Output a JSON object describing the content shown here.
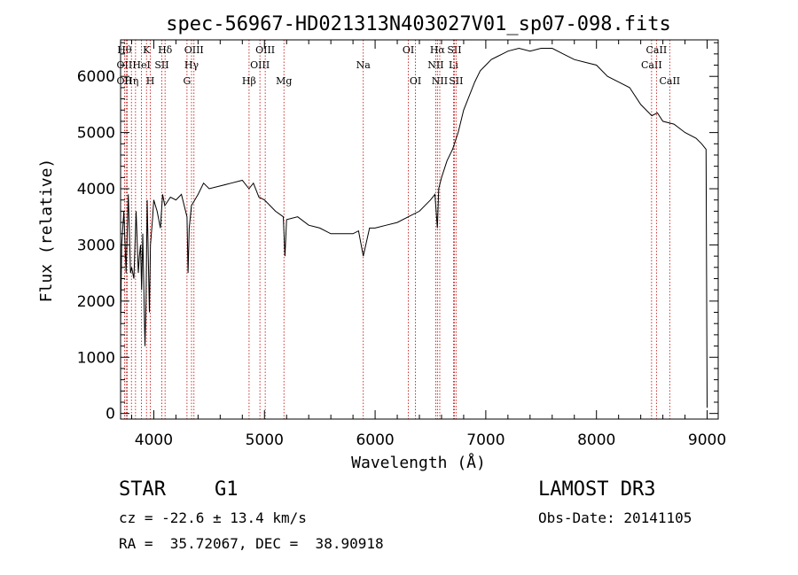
{
  "chart_data": {
    "type": "line",
    "title": "spec-56967-HD021313N403027V01_sp07-098.fits",
    "xlabel": "Wavelength (Å)",
    "ylabel": "Flux (relative)",
    "xlim": [
      3700,
      9100
    ],
    "ylim": [
      -100,
      6650
    ],
    "x_ticks": [
      4000,
      5000,
      6000,
      7000,
      8000,
      9000
    ],
    "y_ticks": [
      0,
      1000,
      2000,
      3000,
      4000,
      5000,
      6000
    ],
    "grid": false,
    "series": [
      {
        "x": [
          3700,
          3710,
          3730,
          3750,
          3770,
          3790,
          3800,
          3820,
          3840,
          3860,
          3870,
          3880,
          3890,
          3900,
          3920,
          3930,
          3940,
          3960,
          3970,
          3990,
          4000,
          4030,
          4060,
          4080,
          4100,
          4150,
          4200,
          4250,
          4300,
          4310,
          4320,
          4340,
          4400,
          4450,
          4500,
          4600,
          4700,
          4800,
          4860,
          4900,
          4950,
          5000,
          5100,
          5170,
          5185,
          5200,
          5300,
          5400,
          5500,
          5600,
          5700,
          5800,
          5850,
          5893,
          5950,
          6000,
          6100,
          6200,
          6300,
          6400,
          6500,
          6540,
          6563,
          6575,
          6600,
          6650,
          6700,
          6750,
          6800,
          6900,
          6950,
          7000,
          7050,
          7100,
          7150,
          7200,
          7300,
          7400,
          7500,
          7600,
          7700,
          7800,
          7900,
          8000,
          8100,
          8200,
          8300,
          8400,
          8500,
          8550,
          8600,
          8700,
          8800,
          8900,
          8950,
          8990,
          9000
        ],
        "y": [
          1500,
          3000,
          3600,
          2500,
          3900,
          2500,
          2600,
          2400,
          3600,
          2500,
          2800,
          3000,
          2200,
          3200,
          1200,
          2000,
          3800,
          1800,
          3000,
          3500,
          3800,
          3600,
          3300,
          3900,
          3700,
          3850,
          3800,
          3900,
          3500,
          2500,
          3300,
          3700,
          3900,
          4100,
          4000,
          4050,
          4100,
          4150,
          4000,
          4100,
          3850,
          3800,
          3600,
          3500,
          2800,
          3450,
          3500,
          3350,
          3300,
          3200,
          3200,
          3200,
          3250,
          2800,
          3300,
          3300,
          3350,
          3400,
          3500,
          3600,
          3800,
          3900,
          3300,
          4000,
          4200,
          4500,
          4700,
          5000,
          5400,
          5900,
          6100,
          6200,
          6300,
          6350,
          6400,
          6450,
          6500,
          6450,
          6500,
          6500,
          6400,
          6300,
          6250,
          6200,
          6000,
          5900,
          5800,
          5500,
          5300,
          5350,
          5200,
          5150,
          5000,
          4900,
          4800,
          4700,
          100
        ]
      }
    ],
    "lines": [
      {
        "x": 3735,
        "labels": [
          "Hθ",
          "OII",
          "OII"
        ]
      },
      {
        "x": 3750,
        "labels": []
      },
      {
        "x": 3760,
        "labels": []
      },
      {
        "x": 3798,
        "labels": [
          "",
          "",
          "Hη"
        ]
      },
      {
        "x": 3835,
        "labels": []
      },
      {
        "x": 3889,
        "labels": [
          "",
          "HeI",
          ""
        ]
      },
      {
        "x": 3934,
        "labels": [
          "K",
          "",
          ""
        ]
      },
      {
        "x": 3969,
        "labels": [
          "",
          "",
          "H"
        ]
      },
      {
        "x": 4072,
        "labels": [
          "",
          "SII",
          ""
        ]
      },
      {
        "x": 4102,
        "labels": [
          "Hδ",
          "",
          ""
        ]
      },
      {
        "x": 4300,
        "labels": [
          "",
          "",
          "G"
        ]
      },
      {
        "x": 4341,
        "labels": [
          "",
          "Hγ",
          ""
        ]
      },
      {
        "x": 4363,
        "labels": [
          "OIII",
          "",
          ""
        ]
      },
      {
        "x": 4861,
        "labels": [
          "",
          "",
          "Hβ"
        ]
      },
      {
        "x": 4959,
        "labels": [
          "",
          "OIII",
          ""
        ]
      },
      {
        "x": 5007,
        "labels": [
          "OIII",
          "",
          ""
        ]
      },
      {
        "x": 5176,
        "labels": [
          "",
          "",
          "Mg"
        ]
      },
      {
        "x": 5893,
        "labels": [
          "",
          "Na",
          ""
        ]
      },
      {
        "x": 6300,
        "labels": [
          "OI",
          "",
          ""
        ]
      },
      {
        "x": 6364,
        "labels": [
          "",
          "",
          "OI"
        ]
      },
      {
        "x": 6548,
        "labels": [
          "",
          "NII",
          ""
        ]
      },
      {
        "x": 6563,
        "labels": [
          "Hα",
          "",
          ""
        ]
      },
      {
        "x": 6584,
        "labels": [
          "",
          "",
          "NII"
        ]
      },
      {
        "x": 6708,
        "labels": [
          "",
          "Li",
          ""
        ]
      },
      {
        "x": 6716,
        "labels": [
          "SII",
          "",
          ""
        ]
      },
      {
        "x": 6731,
        "labels": [
          "",
          "",
          "SII"
        ]
      },
      {
        "x": 8498,
        "labels": [
          "",
          "CaII",
          ""
        ]
      },
      {
        "x": 8542,
        "labels": [
          "CaII",
          "",
          ""
        ]
      },
      {
        "x": 8662,
        "labels": [
          "",
          "",
          "CaII"
        ]
      }
    ]
  },
  "info": {
    "class_label": "STAR",
    "subclass": "G1",
    "survey": "LAMOST DR3",
    "cz": "cz = -22.6 ± 13.4 km/s",
    "obs_date": "Obs-Date: 20141105",
    "coords": "RA =  35.72067, DEC =  38.90918"
  },
  "colors": {
    "spectrum": "#000000",
    "line_marker": "#c00000"
  }
}
